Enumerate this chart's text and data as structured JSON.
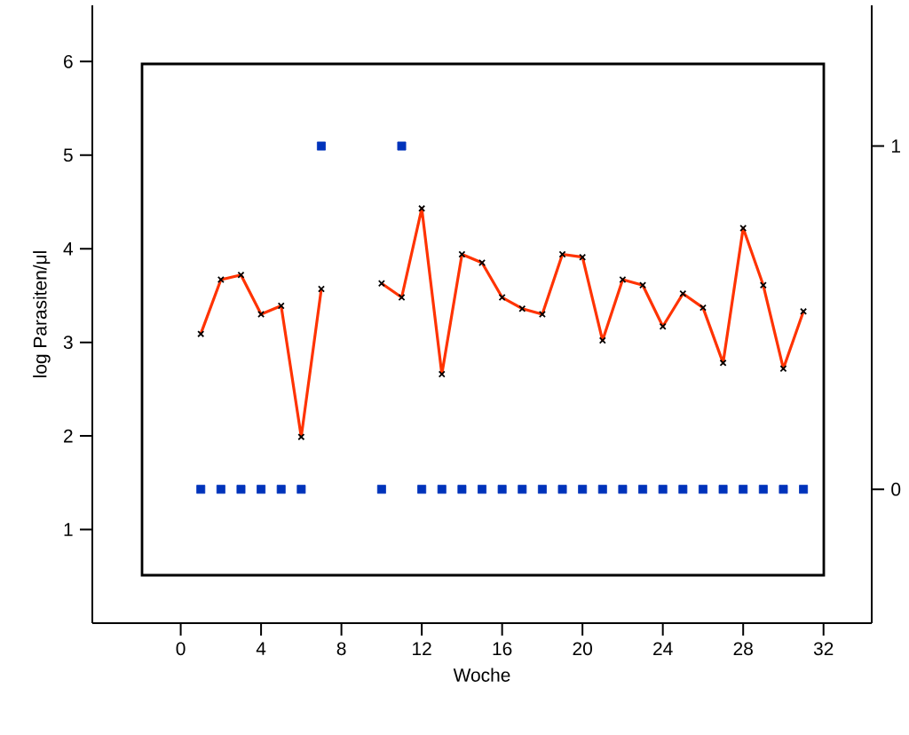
{
  "chart_data": {
    "type": "line",
    "xlabel": "Woche",
    "ylabel": "log Parasiten/μl",
    "x": [
      1,
      2,
      3,
      4,
      5,
      6,
      7,
      8,
      9,
      10,
      11,
      12,
      13,
      14,
      15,
      16,
      17,
      18,
      19,
      20,
      21,
      22,
      23,
      24,
      25,
      26,
      27,
      28,
      29,
      30,
      31
    ],
    "xlim": [
      -4.4,
      34.4
    ],
    "xticks": [
      0,
      4,
      8,
      12,
      16,
      20,
      24,
      28,
      32
    ],
    "ylim": [
      0,
      6.6
    ],
    "yticks": [
      1,
      2,
      3,
      4,
      5,
      6
    ],
    "y2lim": [
      -0.39,
      1.41
    ],
    "y2ticks": [
      0,
      1
    ],
    "series": [
      {
        "color": "#ff3300",
        "marker": "cross",
        "line_style": "solid",
        "values": [
          3.09,
          3.67,
          3.72,
          3.3,
          3.39,
          1.99,
          3.57,
          null,
          null,
          3.63,
          3.48,
          4.43,
          2.66,
          3.94,
          3.85,
          3.48,
          3.36,
          3.3,
          3.94,
          3.91,
          3.02,
          3.67,
          3.61,
          3.17,
          3.52,
          3.37,
          2.78,
          4.22,
          3.61,
          2.72,
          3.33
        ]
      },
      {
        "type": "scatter",
        "axis": "y2",
        "color": "#0033bb",
        "marker": "square",
        "values": [
          0,
          0,
          0,
          0,
          0,
          0,
          1,
          null,
          null,
          0,
          1,
          0,
          0,
          0,
          0,
          0,
          0,
          0,
          0,
          0,
          0,
          0,
          0,
          0,
          0,
          0,
          0,
          0,
          0,
          0,
          0
        ]
      }
    ]
  }
}
